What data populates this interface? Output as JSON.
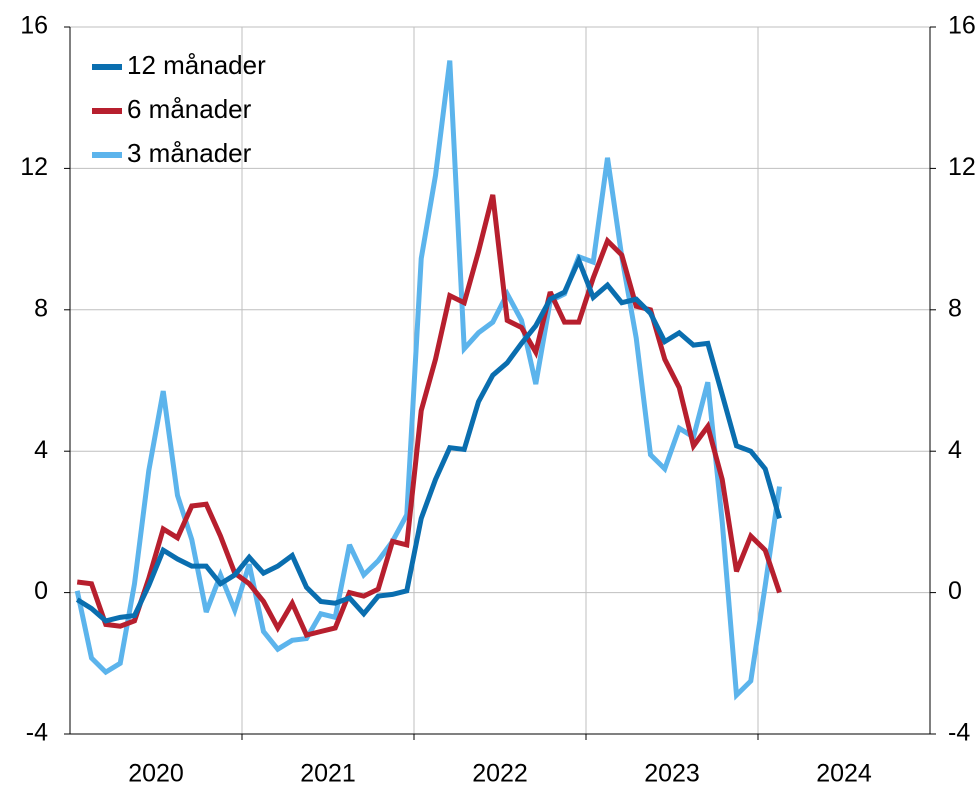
{
  "chart_data": {
    "type": "line",
    "legend": "upper left",
    "grid": true,
    "xlim": [
      2020,
      2025
    ],
    "xticks": [
      2021,
      2022,
      2023,
      2024
    ],
    "year_labels": [
      "2020",
      "2021",
      "2022",
      "2023",
      "2024"
    ],
    "ylim": [
      -4,
      16
    ],
    "yticks": [
      -4,
      0,
      4,
      8,
      12,
      16
    ],
    "y2lim": [
      -4,
      16
    ],
    "y2ticks": [
      -4,
      0,
      4,
      8,
      12,
      16
    ],
    "x": [
      2020.042,
      2020.125,
      2020.208,
      2020.292,
      2020.375,
      2020.458,
      2020.542,
      2020.625,
      2020.708,
      2020.792,
      2020.875,
      2020.958,
      2021.042,
      2021.125,
      2021.208,
      2021.292,
      2021.375,
      2021.458,
      2021.542,
      2021.625,
      2021.708,
      2021.792,
      2021.875,
      2021.958,
      2022.042,
      2022.125,
      2022.208,
      2022.292,
      2022.375,
      2022.458,
      2022.542,
      2022.625,
      2022.708,
      2022.792,
      2022.875,
      2022.958,
      2023.042,
      2023.125,
      2023.208,
      2023.292,
      2023.375,
      2023.458,
      2023.542,
      2023.625,
      2023.708,
      2023.792,
      2023.875,
      2023.958,
      2024.042,
      2024.125
    ],
    "series": [
      {
        "name": "12 månader",
        "color": "#0a6eaf",
        "values": [
          -0.2,
          -0.45,
          -0.8,
          -0.7,
          -0.65,
          0.2,
          1.2,
          0.95,
          0.75,
          0.75,
          0.25,
          0.5,
          1.0,
          0.55,
          0.75,
          1.05,
          0.15,
          -0.25,
          -0.3,
          -0.15,
          -0.6,
          -0.1,
          -0.05,
          0.05,
          2.1,
          3.2,
          4.1,
          4.05,
          5.4,
          6.15,
          6.5,
          7.05,
          7.55,
          8.3,
          8.5,
          9.4,
          8.35,
          8.7,
          8.2,
          8.3,
          7.9,
          7.1,
          7.35,
          7.0,
          7.05,
          5.6,
          4.15,
          4.0,
          3.5,
          2.1
        ]
      },
      {
        "name": "6 månader",
        "color": "#b71f2e",
        "values": [
          0.3,
          0.25,
          -0.9,
          -0.95,
          -0.8,
          0.4,
          1.8,
          1.55,
          2.45,
          2.5,
          1.6,
          0.55,
          0.25,
          -0.25,
          -1.0,
          -0.3,
          -1.2,
          -1.1,
          -1.0,
          0.0,
          -0.1,
          0.1,
          1.45,
          1.35,
          5.15,
          6.6,
          8.4,
          8.2,
          9.65,
          11.25,
          7.7,
          7.5,
          6.8,
          8.5,
          7.65,
          7.65,
          8.9,
          9.95,
          9.55,
          8.1,
          8.0,
          6.6,
          5.8,
          4.15,
          4.7,
          3.2,
          0.6,
          1.6,
          1.2,
          0.0
        ]
      },
      {
        "name": "3 månader",
        "color": "#5cb4ec",
        "values": [
          0.05,
          -1.85,
          -2.25,
          -2.0,
          0.25,
          3.45,
          5.7,
          2.75,
          1.5,
          -0.55,
          0.5,
          -0.5,
          0.8,
          -1.1,
          -1.6,
          -1.35,
          -1.3,
          -0.6,
          -0.7,
          1.35,
          0.5,
          0.9,
          1.45,
          2.2,
          9.45,
          11.8,
          15.05,
          6.9,
          7.35,
          7.65,
          8.45,
          7.7,
          5.9,
          8.25,
          8.45,
          9.5,
          9.35,
          12.3,
          9.5,
          7.2,
          3.9,
          3.5,
          4.65,
          4.4,
          5.95,
          2.0,
          -2.9,
          -2.5,
          0.2,
          3.0
        ]
      }
    ]
  }
}
